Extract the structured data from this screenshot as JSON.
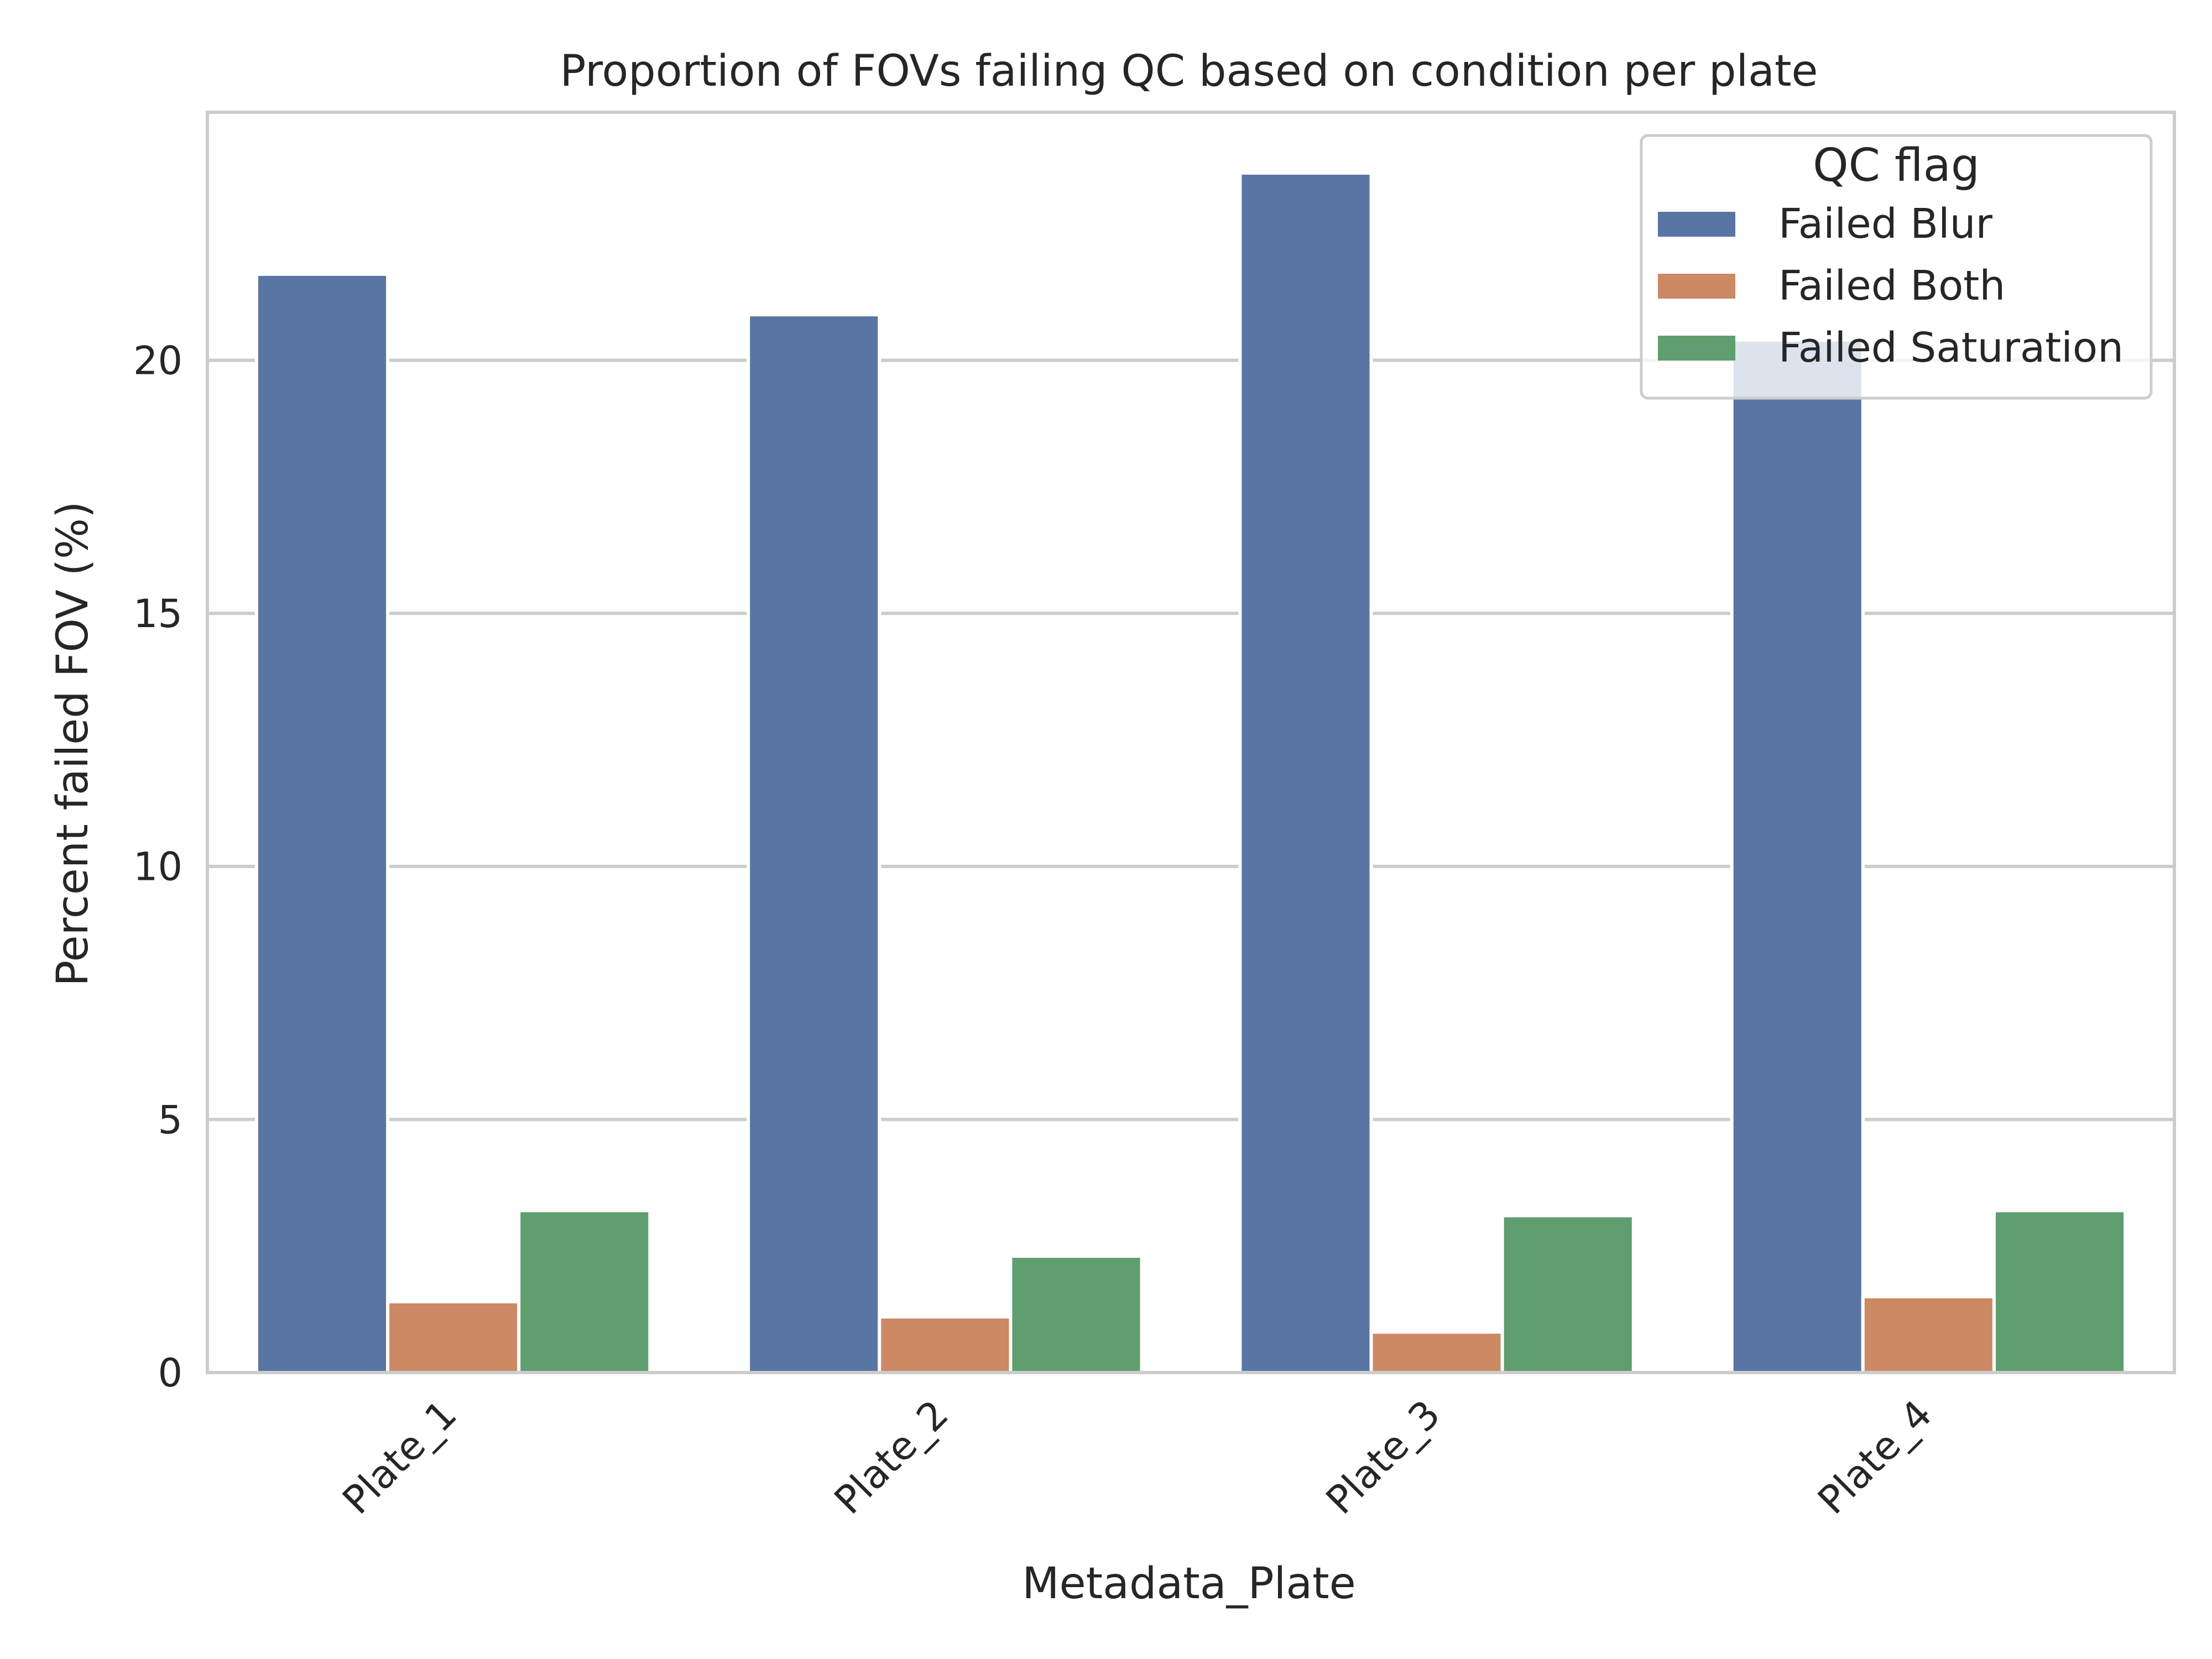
{
  "chart_data": {
    "type": "bar",
    "title": "Proportion of FOVs failing QC based on condition per plate",
    "xlabel": "Metadata_Plate",
    "ylabel": "Percent failed FOV (%)",
    "categories": [
      "Plate_1",
      "Plate_2",
      "Plate_3",
      "Plate_4"
    ],
    "series": [
      {
        "name": "Failed Blur",
        "color": "#5875a4",
        "values": [
          21.7,
          20.9,
          23.7,
          20.4
        ]
      },
      {
        "name": "Failed Both",
        "color": "#cc8963",
        "values": [
          1.4,
          1.1,
          0.8,
          1.5
        ]
      },
      {
        "name": "Failed Saturation",
        "color": "#5f9e6e",
        "values": [
          3.2,
          2.3,
          3.1,
          3.2
        ]
      }
    ],
    "ylim": [
      0,
      24.9
    ],
    "yticks": [
      0,
      5,
      10,
      15,
      20
    ],
    "grid": "horizontal",
    "legend": {
      "title": "QC flag",
      "placement": "top-right"
    },
    "colors": {
      "grid": "#cccccc",
      "axes_edge": "#cccccc",
      "text": "#262626",
      "background": "#ffffff"
    }
  }
}
